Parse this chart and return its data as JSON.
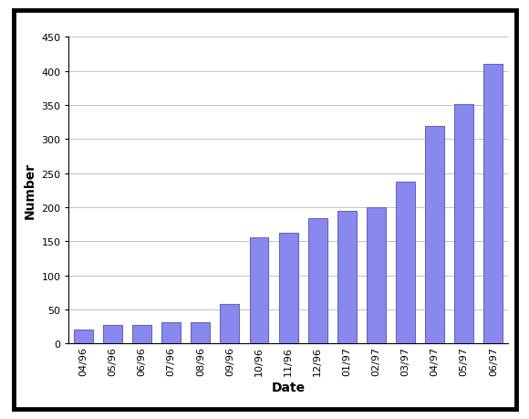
{
  "categories": [
    "04/96",
    "05/96",
    "06/96",
    "07/96",
    "08/96",
    "09/96",
    "10/96",
    "11/96",
    "12/96",
    "01/97",
    "02/97",
    "03/97",
    "04/97",
    "05/97",
    "06/97"
  ],
  "values": [
    20,
    27,
    27,
    31,
    31,
    58,
    156,
    163,
    184,
    194,
    200,
    238,
    319,
    352,
    411
  ],
  "bar_color": "#8888ee",
  "bar_edge_color": "#6666bb",
  "xlabel": "Date",
  "ylabel": "Number",
  "ylim": [
    0,
    450
  ],
  "yticks": [
    0,
    50,
    100,
    150,
    200,
    250,
    300,
    350,
    400,
    450
  ],
  "background_color": "#ffffff",
  "plot_bg_color": "#ffffff",
  "grid_color": "#bbbbbb",
  "xlabel_fontsize": 10,
  "ylabel_fontsize": 10,
  "tick_fontsize": 8,
  "bar_width": 0.65,
  "frame_linewidth": 3.5
}
